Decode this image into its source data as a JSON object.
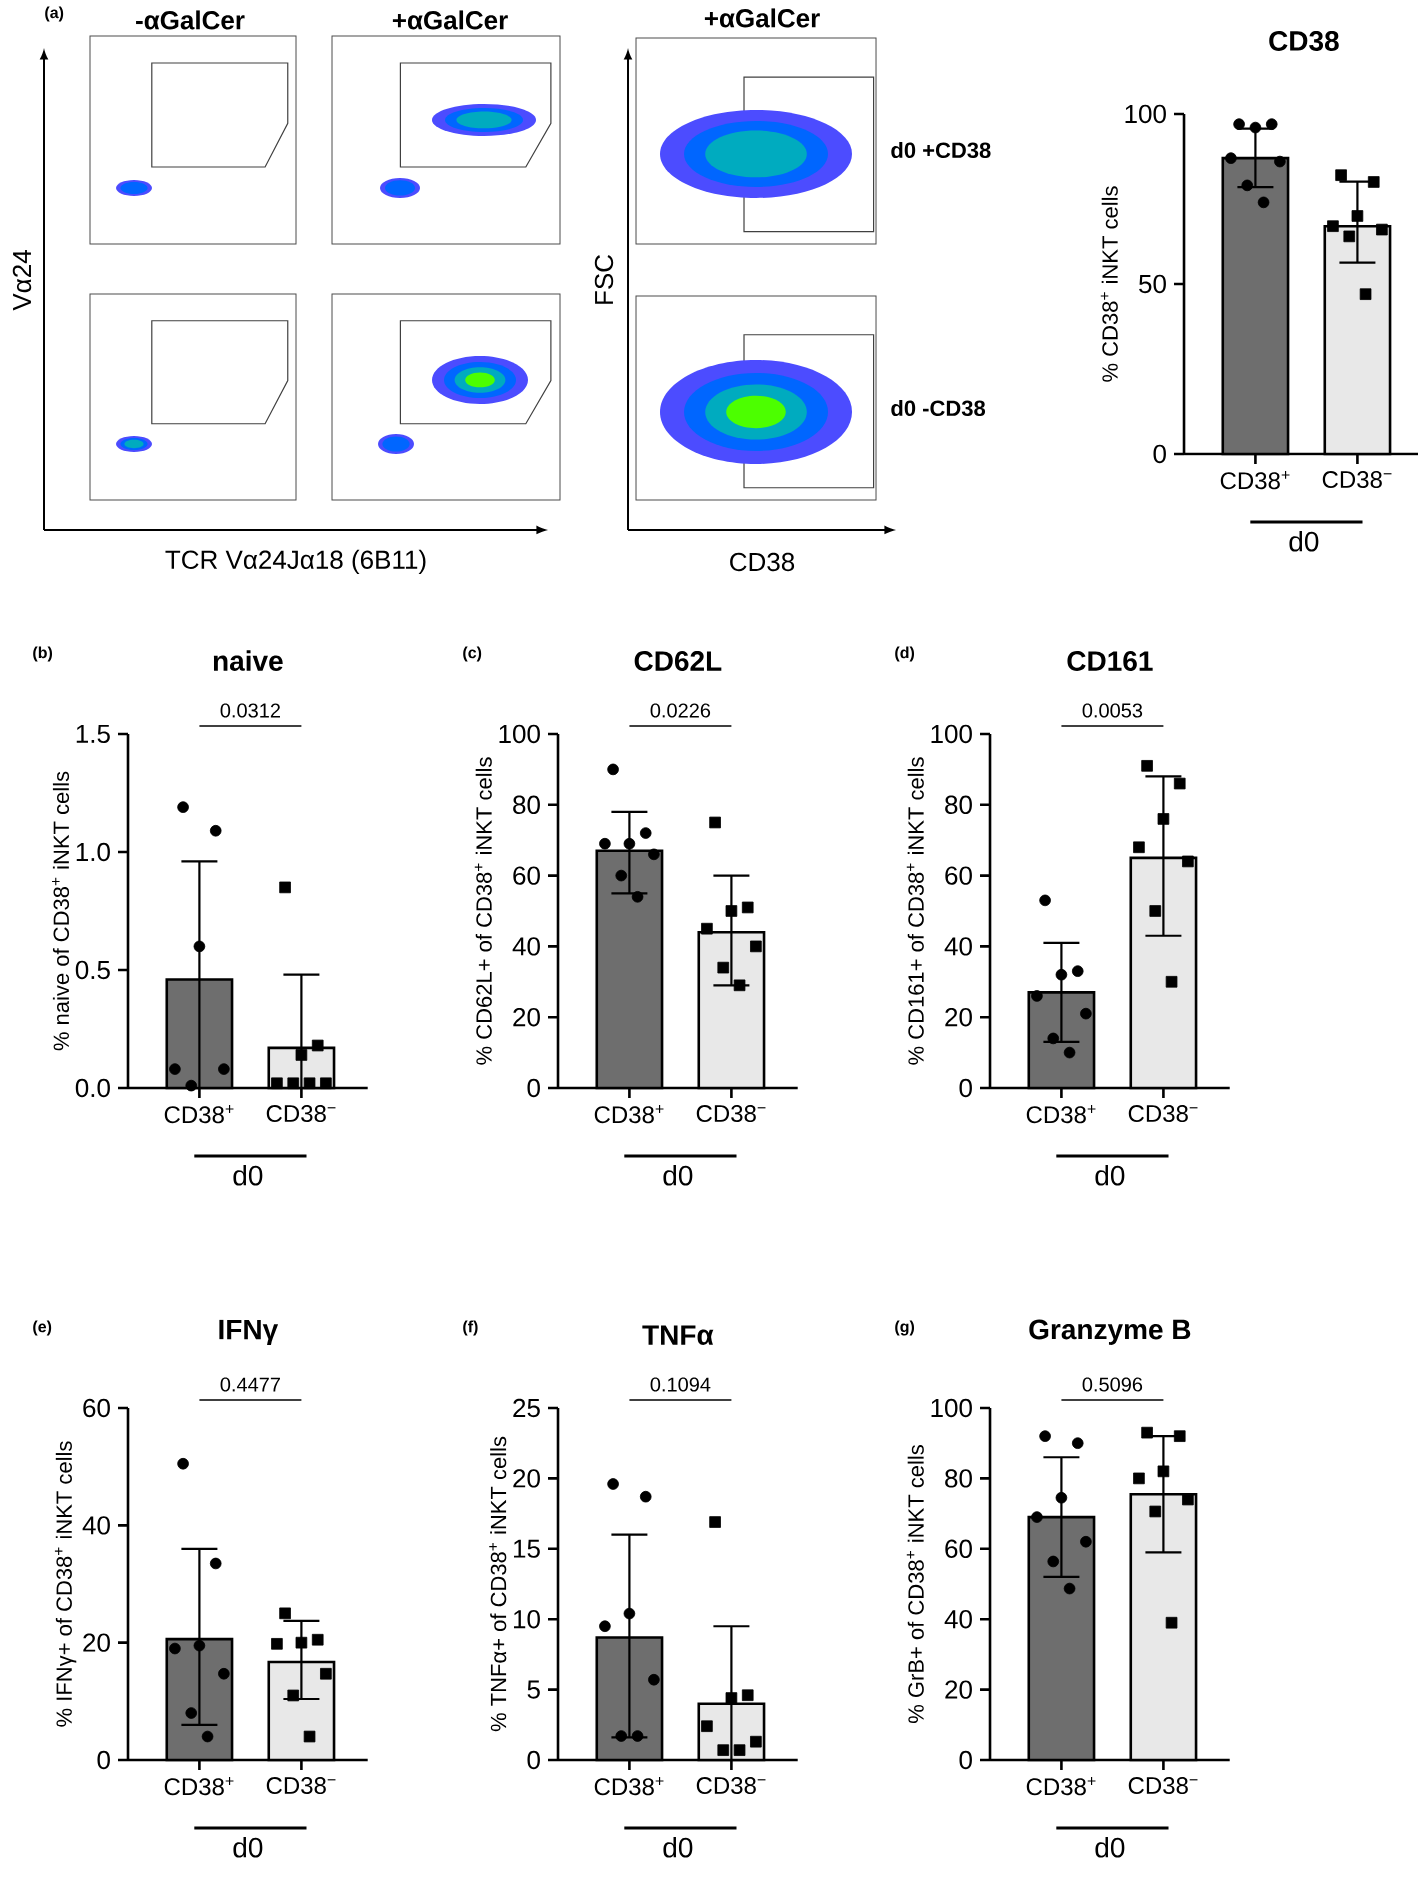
{
  "chart_data": [
    {
      "type": "other",
      "annotations": [
        "(a)",
        "-αGalCer",
        "+αGalCer",
        "+αGalCer",
        "Vα24",
        "TCR Vα24Jα18 (6B11)",
        "FSC",
        "CD38",
        "d0 +CD38",
        "d0 -CD38"
      ]
    },
    {
      "type": "bar",
      "title": "CD38",
      "ylabel": "% CD38$^{+}$ iNKT cells",
      "xlabel": "d0",
      "categories": [
        "CD38$^{+}$",
        "CD38$^{−}$"
      ],
      "ylim": [
        0,
        100
      ],
      "yticks": [
        0,
        50,
        100
      ],
      "series": [
        {
          "type": "bar",
          "values": [
            87,
            67
          ],
          "colors": [
            "#6e6e6e",
            "#e8e8e8"
          ],
          "errors": [
            [
              78.5,
              95.7
            ],
            [
              56.3,
              80.1
            ]
          ]
        },
        {
          "type": "scatter",
          "marker": "circle",
          "color": "#000000",
          "x": [
            "CD38$^{+}$",
            "CD38$^{+}$",
            "CD38$^{+}$",
            "CD38$^{+}$",
            "CD38$^{+}$",
            "CD38$^{+}$",
            "CD38$^{+}$"
          ],
          "values": [
            97,
            97,
            96,
            87,
            86,
            79,
            74
          ]
        },
        {
          "type": "scatter",
          "marker": "square",
          "color": "#000000",
          "x": [
            "CD38$^{−}$",
            "CD38$^{−}$",
            "CD38$^{−}$",
            "CD38$^{−}$",
            "CD38$^{−}$",
            "CD38$^{−}$",
            "CD38$^{−}$"
          ],
          "values": [
            82,
            80,
            70,
            67,
            66,
            64,
            47
          ]
        }
      ]
    },
    {
      "type": "bar",
      "title": "naive",
      "ylabel": "% naive of CD38$^{+}$ iNKT cells",
      "xlabel": "d0",
      "categories": [
        "CD38$^{+}$",
        "CD38$^{−}$"
      ],
      "ylim": [
        0,
        1.5
      ],
      "yticks": [
        {
          "value": 0,
          "label": "0.0"
        },
        {
          "value": 0.5,
          "label": "0.5"
        },
        {
          "value": 1,
          "label": "1.0"
        },
        {
          "value": 1.5,
          "label": "1.5"
        }
      ],
      "annotations": [
        "(b)",
        "0.0312"
      ],
      "series": [
        {
          "type": "bar",
          "values": [
            0.46,
            0.17
          ],
          "colors": [
            "#6e6e6e",
            "#e8e8e8"
          ],
          "errors": [
            [
              0,
              0.96
            ],
            [
              0,
              0.48
            ]
          ]
        },
        {
          "type": "scatter",
          "marker": "circle",
          "color": "#000000",
          "x": [
            "CD38$^{+}$",
            "CD38$^{+}$",
            "CD38$^{+}$",
            "CD38$^{+}$",
            "CD38$^{+}$",
            "CD38$^{+}$"
          ],
          "values": [
            1.19,
            1.09,
            0.6,
            0.08,
            0.08,
            0.01
          ]
        },
        {
          "type": "scatter",
          "marker": "square",
          "color": "#000000",
          "x": [
            "CD38$^{−}$",
            "CD38$^{−}$",
            "CD38$^{−}$",
            "CD38$^{−}$",
            "CD38$^{−}$",
            "CD38$^{−}$",
            "CD38$^{−}$"
          ],
          "values": [
            0.85,
            0.18,
            0.14,
            0.02,
            0.02,
            0.02,
            0.02
          ]
        }
      ]
    },
    {
      "type": "bar",
      "title": "CD62L",
      "ylabel": "% CD62L+ of CD38$^{+}$ iNKT cells",
      "xlabel": "d0",
      "categories": [
        "CD38$^{+}$",
        "CD38$^{−}$"
      ],
      "ylim": [
        0,
        100
      ],
      "yticks": [
        0,
        20,
        40,
        60,
        80,
        100
      ],
      "annotations": [
        "(c)",
        "0.0226"
      ],
      "series": [
        {
          "type": "bar",
          "values": [
            67,
            44
          ],
          "colors": [
            "#6e6e6e",
            "#e8e8e8"
          ],
          "errors": [
            [
              55,
              78
            ],
            [
              29,
              60
            ]
          ]
        },
        {
          "type": "scatter",
          "marker": "circle",
          "color": "#000000",
          "x": [
            "CD38$^{+}$",
            "CD38$^{+}$",
            "CD38$^{+}$",
            "CD38$^{+}$",
            "CD38$^{+}$",
            "CD38$^{+}$",
            "CD38$^{+}$"
          ],
          "values": [
            90,
            72,
            69,
            69,
            66,
            60,
            54
          ]
        },
        {
          "type": "scatter",
          "marker": "square",
          "color": "#000000",
          "x": [
            "CD38$^{−}$",
            "CD38$^{−}$",
            "CD38$^{−}$",
            "CD38$^{−}$",
            "CD38$^{−}$",
            "CD38$^{−}$",
            "CD38$^{−}$"
          ],
          "values": [
            75,
            51,
            50,
            45,
            40,
            34,
            29
          ]
        }
      ]
    },
    {
      "type": "bar",
      "title": "CD161",
      "ylabel": "% CD161+ of CD38$^{+}$ iNKT cells",
      "xlabel": "d0",
      "categories": [
        "CD38$^{+}$",
        "CD38$^{−}$"
      ],
      "ylim": [
        0,
        100
      ],
      "yticks": [
        0,
        20,
        40,
        60,
        80,
        100
      ],
      "annotations": [
        "(d)",
        "0.0053"
      ],
      "series": [
        {
          "type": "bar",
          "values": [
            27,
            65
          ],
          "colors": [
            "#6e6e6e",
            "#e8e8e8"
          ],
          "errors": [
            [
              13,
              41
            ],
            [
              43,
              88
            ]
          ]
        },
        {
          "type": "scatter",
          "marker": "circle",
          "color": "#000000",
          "x": [
            "CD38$^{+}$",
            "CD38$^{+}$",
            "CD38$^{+}$",
            "CD38$^{+}$",
            "CD38$^{+}$",
            "CD38$^{+}$",
            "CD38$^{+}$"
          ],
          "values": [
            53,
            33,
            32,
            26,
            21,
            14,
            10
          ]
        },
        {
          "type": "scatter",
          "marker": "square",
          "color": "#000000",
          "x": [
            "CD38$^{−}$",
            "CD38$^{−}$",
            "CD38$^{−}$",
            "CD38$^{−}$",
            "CD38$^{−}$",
            "CD38$^{−}$",
            "CD38$^{−}$"
          ],
          "values": [
            91,
            86,
            76,
            68,
            64,
            50,
            30
          ]
        }
      ]
    },
    {
      "type": "bar",
      "title": "IFNγ",
      "ylabel": "% IFNγ+ of CD38$^{+}$ iNKT cells",
      "xlabel": "d0",
      "categories": [
        "CD38$^{+}$",
        "CD38$^{−}$"
      ],
      "ylim": [
        0,
        60
      ],
      "yticks": [
        0,
        20,
        40,
        60
      ],
      "annotations": [
        "(e)",
        "0.4477"
      ],
      "series": [
        {
          "type": "bar",
          "values": [
            20.6,
            16.7
          ],
          "colors": [
            "#6e6e6e",
            "#e8e8e8"
          ],
          "errors": [
            [
              6,
              36
            ],
            [
              10.4,
              23.7
            ]
          ]
        },
        {
          "type": "scatter",
          "marker": "circle",
          "color": "#000000",
          "x": [
            "CD38$^{+}$",
            "CD38$^{+}$",
            "CD38$^{+}$",
            "CD38$^{+}$",
            "CD38$^{+}$",
            "CD38$^{+}$",
            "CD38$^{+}$"
          ],
          "values": [
            50.5,
            33.5,
            19.5,
            19,
            14.7,
            8,
            4
          ]
        },
        {
          "type": "scatter",
          "marker": "square",
          "color": "#000000",
          "x": [
            "CD38$^{−}$",
            "CD38$^{−}$",
            "CD38$^{−}$",
            "CD38$^{−}$",
            "CD38$^{−}$",
            "CD38$^{−}$",
            "CD38$^{−}$"
          ],
          "values": [
            25,
            20.5,
            20,
            19.8,
            14.7,
            11,
            4
          ]
        }
      ]
    },
    {
      "type": "bar",
      "title": "TNFα",
      "ylabel": "% TNFα+ of CD38$^{+}$ iNKT cells",
      "xlabel": "d0",
      "categories": [
        "CD38$^{+}$",
        "CD38$^{−}$"
      ],
      "ylim": [
        0,
        25
      ],
      "yticks": [
        0,
        5,
        10,
        15,
        20,
        25
      ],
      "annotations": [
        "(f)",
        "0.1094"
      ],
      "series": [
        {
          "type": "bar",
          "values": [
            8.7,
            4
          ],
          "colors": [
            "#6e6e6e",
            "#e8e8e8"
          ],
          "errors": [
            [
              1.6,
              16
            ],
            [
              0,
              9.5
            ]
          ]
        },
        {
          "type": "scatter",
          "marker": "circle",
          "color": "#000000",
          "x": [
            "CD38$^{+}$",
            "CD38$^{+}$",
            "CD38$^{+}$",
            "CD38$^{+}$",
            "CD38$^{+}$",
            "CD38$^{+}$",
            "CD38$^{+}$"
          ],
          "values": [
            19.6,
            18.7,
            10.4,
            9.5,
            5.7,
            1.7,
            1.7
          ]
        },
        {
          "type": "scatter",
          "marker": "square",
          "color": "#000000",
          "x": [
            "CD38$^{−}$",
            "CD38$^{−}$",
            "CD38$^{−}$",
            "CD38$^{−}$",
            "CD38$^{−}$",
            "CD38$^{−}$",
            "CD38$^{−}$"
          ],
          "values": [
            16.9,
            4.6,
            4.4,
            2.4,
            1.3,
            0.7,
            0.7
          ]
        }
      ]
    },
    {
      "type": "bar",
      "title": "Granzyme B",
      "ylabel": "% GrB+ of CD38$^{+}$ iNKT cells",
      "xlabel": "d0",
      "categories": [
        "CD38$^{+}$",
        "CD38$^{−}$"
      ],
      "ylim": [
        0,
        100
      ],
      "yticks": [
        0,
        20,
        40,
        60,
        80,
        100
      ],
      "annotations": [
        "(g)",
        "0.5096"
      ],
      "series": [
        {
          "type": "bar",
          "values": [
            69,
            75.5
          ],
          "colors": [
            "#6e6e6e",
            "#e8e8e8"
          ],
          "errors": [
            [
              52,
              86
            ],
            [
              59,
              92
            ]
          ]
        },
        {
          "type": "scatter",
          "marker": "circle",
          "color": "#000000",
          "x": [
            "CD38$^{+}$",
            "CD38$^{+}$",
            "CD38$^{+}$",
            "CD38$^{+}$",
            "CD38$^{+}$",
            "CD38$^{+}$",
            "CD38$^{+}$"
          ],
          "values": [
            92,
            90,
            74.5,
            69,
            62,
            56.4,
            48.7
          ]
        },
        {
          "type": "scatter",
          "marker": "square",
          "color": "#000000",
          "x": [
            "CD38$^{−}$",
            "CD38$^{−}$",
            "CD38$^{−}$",
            "CD38$^{−}$",
            "CD38$^{−}$",
            "CD38$^{−}$",
            "CD38$^{−}$"
          ],
          "values": [
            93,
            92,
            82,
            80,
            74,
            70.6,
            39
          ]
        }
      ]
    }
  ]
}
